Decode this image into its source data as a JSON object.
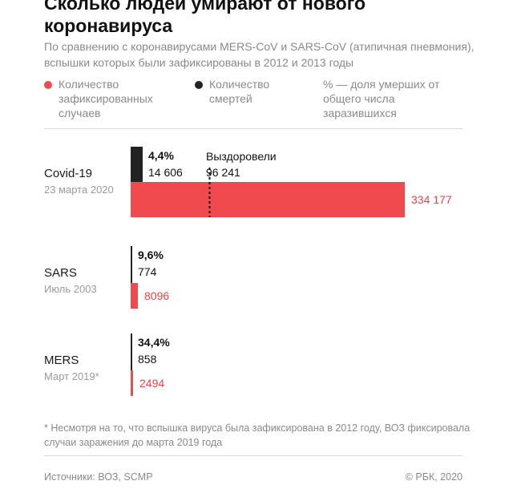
{
  "title": "Сколько людей умирают от нового коронавируса",
  "subtitle": "По сравнению с коронавирусами MERS-CoV и SARS-CoV (атипичная пневмония), вспышки которых были зафиксированы в 2012 и 2013 годы",
  "legend": {
    "cases": "Количество зафиксированных случаев",
    "deaths": "Количество смертей",
    "pct": "% — доля умерших от общего числа заразившихся"
  },
  "colors": {
    "cases": "#f04a4f",
    "deaths": "#222222",
    "text_muted": "#8a8a8a"
  },
  "chart_data": {
    "type": "bar",
    "categories": [
      {
        "name": "Covid-19",
        "date": "23 марта 2020",
        "cases": 334177,
        "cases_label": "334 177",
        "deaths": 14606,
        "deaths_label": "14 606",
        "pct": "4,4%",
        "recovered": 96241,
        "recovered_label": "96 241",
        "recovered_title": "Выздоровели"
      },
      {
        "name": "SARS",
        "date": "Июль 2003",
        "cases": 8096,
        "cases_label": "8096",
        "deaths": 774,
        "deaths_label": "774",
        "pct": "9,6%"
      },
      {
        "name": "MERS",
        "date": "Март 2019*",
        "cases": 2494,
        "cases_label": "2494",
        "deaths": 858,
        "deaths_label": "858",
        "pct": "34,4%"
      }
    ]
  },
  "footnote": "* Несмотря на то, что вспышка вируса была зафиксирована в 2012 году, ВОЗ фиксировала случаи заражения до марта 2019 года",
  "source": "Источники: ВОЗ, SCMP",
  "copyright": "© РБК, 2020"
}
